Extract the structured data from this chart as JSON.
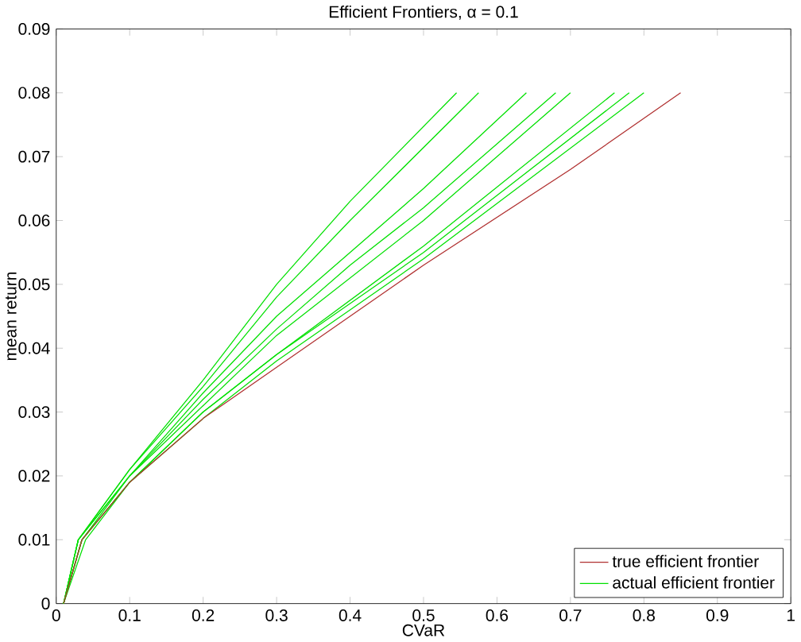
{
  "chart_data": {
    "type": "line",
    "title": "Efficient Frontiers, α = 0.1",
    "xlabel": "CVaR",
    "ylabel": "mean return",
    "xlim": [
      0,
      1
    ],
    "ylim": [
      0,
      0.09
    ],
    "xticks": [
      0,
      0.1,
      0.2,
      0.3,
      0.4,
      0.5,
      0.6,
      0.7,
      0.8,
      0.9,
      1
    ],
    "yticks": [
      0,
      0.01,
      0.02,
      0.03,
      0.04,
      0.05,
      0.06,
      0.07,
      0.08,
      0.09
    ],
    "legend": "bottom right",
    "grid": false,
    "marker": "none",
    "line_style": "solid",
    "series": [
      {
        "name": "true efficient frontier",
        "color": "#b03030",
        "x": [
          0.01,
          0.035,
          0.1,
          0.2,
          0.3,
          0.5,
          0.7,
          0.85
        ],
        "values": [
          0,
          0.01,
          0.019,
          0.029,
          0.037,
          0.053,
          0.068,
          0.08
        ]
      },
      {
        "name": "actual efficient frontier",
        "color": "#00e000",
        "x": [
          0.01,
          0.03,
          0.1,
          0.2,
          0.3,
          0.4,
          0.545
        ],
        "values": [
          0,
          0.01,
          0.021,
          0.035,
          0.05,
          0.063,
          0.08
        ]
      },
      {
        "color": "#00e000",
        "x": [
          0.01,
          0.03,
          0.1,
          0.2,
          0.3,
          0.4,
          0.575
        ],
        "values": [
          0,
          0.01,
          0.021,
          0.034,
          0.048,
          0.06,
          0.08
        ]
      },
      {
        "color": "#00e000",
        "x": [
          0.01,
          0.03,
          0.1,
          0.2,
          0.3,
          0.4,
          0.5,
          0.64
        ],
        "values": [
          0,
          0.01,
          0.02,
          0.033,
          0.045,
          0.055,
          0.065,
          0.08
        ]
      },
      {
        "color": "#00e000",
        "x": [
          0.01,
          0.03,
          0.1,
          0.2,
          0.3,
          0.4,
          0.5,
          0.68
        ],
        "values": [
          0,
          0.01,
          0.02,
          0.032,
          0.043,
          0.053,
          0.062,
          0.08
        ]
      },
      {
        "color": "#00e000",
        "x": [
          0.01,
          0.035,
          0.1,
          0.2,
          0.3,
          0.5,
          0.7
        ],
        "values": [
          0,
          0.01,
          0.02,
          0.031,
          0.042,
          0.06,
          0.08
        ]
      },
      {
        "color": "#00e000",
        "x": [
          0.01,
          0.035,
          0.1,
          0.2,
          0.3,
          0.5,
          0.76
        ],
        "values": [
          0,
          0.01,
          0.019,
          0.03,
          0.039,
          0.056,
          0.08
        ]
      },
      {
        "color": "#00e000",
        "x": [
          0.01,
          0.035,
          0.1,
          0.2,
          0.3,
          0.5,
          0.78
        ],
        "values": [
          0,
          0.01,
          0.019,
          0.03,
          0.039,
          0.055,
          0.08
        ]
      },
      {
        "color": "#00e000",
        "x": [
          0.01,
          0.04,
          0.1,
          0.2,
          0.3,
          0.5,
          0.8
        ],
        "values": [
          0,
          0.01,
          0.019,
          0.029,
          0.038,
          0.054,
          0.08
        ]
      }
    ]
  }
}
